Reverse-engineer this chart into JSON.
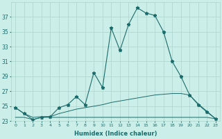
{
  "xlabel": "Humidex (Indice chaleur)",
  "x": [
    0,
    1,
    2,
    3,
    4,
    5,
    6,
    7,
    8,
    9,
    10,
    11,
    12,
    13,
    14,
    15,
    16,
    17,
    18,
    19,
    20,
    21,
    22,
    23
  ],
  "line1": [
    24.8,
    24.0,
    23.2,
    23.5,
    23.6,
    24.8,
    25.2,
    26.3,
    25.2,
    29.5,
    27.5,
    35.5,
    32.5,
    36.0,
    38.2,
    37.5,
    37.2,
    35.0,
    31.0,
    29.0,
    26.5,
    25.2,
    24.2,
    23.3
  ],
  "line2": [
    23.5,
    23.5,
    23.2,
    23.5,
    23.5,
    23.5,
    23.5,
    23.5,
    23.5,
    23.5,
    23.5,
    23.5,
    23.5,
    23.5,
    23.5,
    23.5,
    23.5,
    23.5,
    23.5,
    23.5,
    23.5,
    23.5,
    23.5,
    23.3
  ],
  "line3": [
    24.8,
    24.0,
    23.5,
    23.6,
    23.6,
    24.0,
    24.3,
    24.6,
    24.8,
    25.0,
    25.2,
    25.5,
    25.7,
    25.9,
    26.1,
    26.3,
    26.5,
    26.6,
    26.7,
    26.7,
    26.5,
    25.3,
    24.3,
    23.3
  ],
  "line_color": "#1a6b6b",
  "bg_color": "#cceee8",
  "grid_color": "#aad4cc",
  "ylim": [
    23,
    39
  ],
  "xlim": [
    -0.5,
    23.5
  ],
  "yticks": [
    23,
    25,
    27,
    29,
    31,
    33,
    35,
    37
  ],
  "xticks": [
    0,
    1,
    2,
    3,
    4,
    5,
    6,
    7,
    8,
    9,
    10,
    11,
    12,
    13,
    14,
    15,
    16,
    17,
    18,
    19,
    20,
    21,
    22,
    23
  ]
}
